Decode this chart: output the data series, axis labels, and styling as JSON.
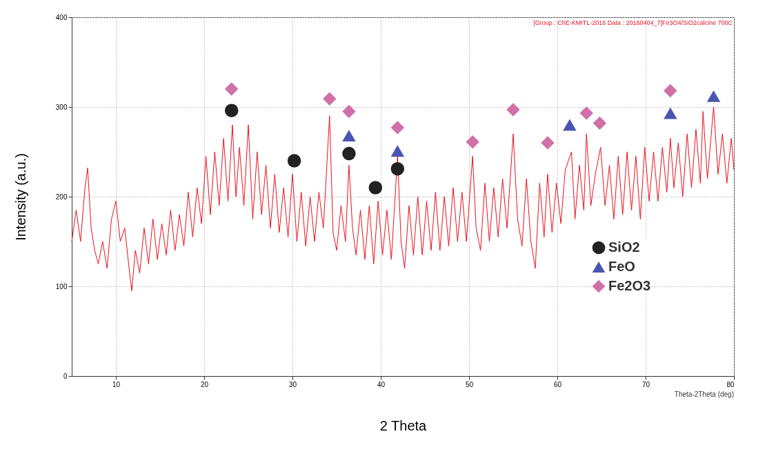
{
  "chart_data": {
    "type": "line",
    "xlabel": "2 Theta",
    "ylabel": "Intensity (a.u.)",
    "xlim": [
      5,
      80
    ],
    "xticks": [
      10,
      20,
      30,
      40,
      50,
      60,
      70,
      80
    ],
    "ylim": [
      0,
      400
    ],
    "yticks": [
      0,
      100,
      200,
      300,
      400
    ],
    "grid": true,
    "legend": "bottom right",
    "annotations": [
      "[Group : ChE-KMITL-2016 Data : 20160404_7]Fe3O4/SiO2calcine 700C",
      "Theta-2Theta (deg)"
    ],
    "series": [
      {
        "color": "#e8101c",
        "marker": "none",
        "x": [
          5,
          5.5,
          6,
          6.5,
          6.8,
          7.2,
          7.6,
          8,
          8.5,
          9,
          9.5,
          10,
          10.5,
          11,
          11.5,
          11.8,
          12.2,
          12.7,
          13.2,
          13.7,
          14.2,
          14.7,
          15.2,
          15.7,
          16.2,
          16.7,
          17.2,
          17.7,
          18.2,
          18.7,
          19.2,
          19.7,
          20.2,
          20.7,
          21.2,
          21.7,
          22.2,
          22.7,
          23.2,
          23.6,
          24,
          24.5,
          25,
          25.5,
          26,
          26.5,
          27,
          27.5,
          28,
          28.5,
          29,
          29.5,
          30,
          30.5,
          31,
          31.5,
          32,
          32.5,
          33,
          33.5,
          34.2,
          34.6,
          35,
          35.5,
          36,
          36.4,
          36.8,
          37.2,
          37.7,
          38.2,
          38.7,
          39.2,
          39.7,
          40.2,
          40.7,
          41.2,
          41.9,
          42.3,
          42.7,
          43.2,
          43.7,
          44.2,
          44.7,
          45.2,
          45.7,
          46.2,
          46.7,
          47.2,
          47.7,
          48.2,
          48.7,
          49.2,
          49.7,
          50.4,
          50.8,
          51.3,
          51.8,
          52.3,
          52.8,
          53.3,
          53.8,
          54.3,
          55,
          55.5,
          56,
          56.5,
          57,
          57.5,
          58,
          58.5,
          58.9,
          59.4,
          59.9,
          60.4,
          60.9,
          61.6,
          62,
          62.5,
          63,
          63.3,
          63.8,
          64.3,
          64.9,
          65.4,
          65.9,
          66.4,
          66.9,
          67.4,
          67.9,
          68.4,
          68.9,
          69.4,
          69.9,
          70.4,
          70.9,
          71.4,
          71.9,
          72.4,
          72.8,
          73.2,
          73.7,
          74.2,
          74.7,
          75.2,
          75.7,
          76.2,
          76.5,
          77,
          77.7,
          78.2,
          78.7,
          79.2,
          79.7,
          80
        ],
        "values": [
          150,
          185,
          150,
          210,
          232,
          165,
          140,
          125,
          150,
          120,
          175,
          195,
          150,
          165,
          120,
          95,
          140,
          115,
          165,
          125,
          175,
          130,
          170,
          135,
          185,
          140,
          180,
          145,
          205,
          155,
          210,
          170,
          245,
          180,
          250,
          190,
          265,
          195,
          280,
          200,
          255,
          190,
          280,
          175,
          250,
          180,
          235,
          165,
          225,
          160,
          210,
          155,
          225,
          150,
          205,
          145,
          200,
          150,
          205,
          165,
          290,
          160,
          140,
          190,
          150,
          235,
          165,
          135,
          185,
          130,
          190,
          125,
          195,
          135,
          185,
          130,
          245,
          150,
          120,
          190,
          135,
          200,
          135,
          195,
          140,
          205,
          140,
          200,
          145,
          210,
          150,
          205,
          150,
          245,
          165,
          140,
          215,
          150,
          210,
          155,
          220,
          165,
          270,
          175,
          145,
          220,
          150,
          120,
          215,
          155,
          225,
          160,
          215,
          170,
          230,
          250,
          175,
          235,
          185,
          270,
          190,
          225,
          255,
          190,
          235,
          175,
          245,
          180,
          250,
          185,
          245,
          175,
          255,
          195,
          250,
          195,
          255,
          205,
          265,
          210,
          260,
          200,
          270,
          210,
          275,
          215,
          295,
          220,
          300,
          225,
          270,
          215,
          265,
          230
        ]
      },
      {
        "type": "scatter",
        "name": "SiO2",
        "color": "#222222",
        "marker": "circle",
        "x": [
          23.1,
          30.2,
          36.4,
          39.4,
          41.9
        ],
        "values": [
          296,
          240,
          248,
          210,
          231
        ]
      },
      {
        "type": "scatter",
        "name": "FeO",
        "color": "#4a55b0",
        "marker": "triangle",
        "x": [
          36.4,
          41.9,
          61.4,
          72.8,
          77.7
        ],
        "values": [
          268,
          251,
          280,
          293,
          312
        ]
      },
      {
        "type": "scatter",
        "name": "Fe2O3",
        "color": "#d070a8",
        "marker": "diamond",
        "x": [
          23.1,
          34.2,
          36.4,
          41.9,
          50.4,
          55.0,
          58.9,
          63.3,
          64.8,
          72.8
        ],
        "values": [
          320,
          309,
          295,
          277,
          261,
          297,
          260,
          293,
          282,
          318
        ]
      }
    ]
  }
}
